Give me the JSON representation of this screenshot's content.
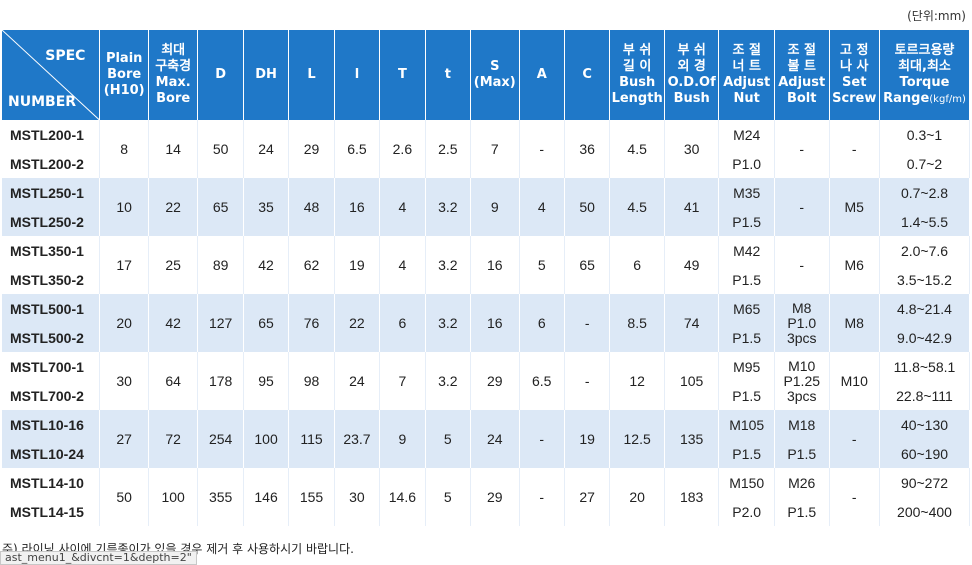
{
  "unit_label": "(단위:mm)",
  "headers": {
    "spec": "SPEC",
    "number": "NUMBER",
    "plain_bore": [
      "Plain",
      "Bore",
      "(H10)"
    ],
    "max_bore": [
      "최대",
      "구축경",
      "Max.",
      "Bore"
    ],
    "d": "D",
    "dh": "DH",
    "l": "L",
    "l2": "l",
    "t_upper": "T",
    "t_lower": "t",
    "s": [
      "S",
      "(Max)"
    ],
    "a": "A",
    "c": "C",
    "bush_length": [
      "부 쉬",
      "길 이",
      "Bush",
      "Length"
    ],
    "bush_od": [
      "부 쉬",
      "외 경",
      "O.D.Of",
      "Bush"
    ],
    "adjust_nut": [
      "조 절",
      "너 트",
      "Adjust",
      "Nut"
    ],
    "adjust_bolt": [
      "조 절",
      "볼 트",
      "Adjust",
      "Bolt"
    ],
    "set_screw": [
      "고 정",
      "나 사",
      "Set",
      "Screw"
    ],
    "torque": [
      "토르크용량",
      "최대,최소",
      "Torque",
      "Range",
      "(kgf/m)"
    ]
  },
  "groups": [
    {
      "models": [
        "MSTL200-1",
        "MSTL200-2"
      ],
      "plain_bore": "8",
      "max_bore": "14",
      "d": "50",
      "dh": "24",
      "l": "29",
      "l2": "6.5",
      "t_upper": "2.6",
      "t_lower": "2.5",
      "s": "7",
      "a": "-",
      "c": "36",
      "bush_length": "4.5",
      "bush_od": "30",
      "adjust_nut": [
        "M24",
        "P1.0"
      ],
      "adjust_bolt": "-",
      "set_screw": "-",
      "torque": [
        "0.3~1",
        "0.7~2"
      ]
    },
    {
      "models": [
        "MSTL250-1",
        "MSTL250-2"
      ],
      "plain_bore": "10",
      "max_bore": "22",
      "d": "65",
      "dh": "35",
      "l": "48",
      "l2": "16",
      "t_upper": "4",
      "t_lower": "3.2",
      "s": "9",
      "a": "4",
      "c": "50",
      "bush_length": "4.5",
      "bush_od": "41",
      "adjust_nut": [
        "M35",
        "P1.5"
      ],
      "adjust_bolt": "-",
      "set_screw": "M5",
      "torque": [
        "0.7~2.8",
        "1.4~5.5"
      ]
    },
    {
      "models": [
        "MSTL350-1",
        "MSTL350-2"
      ],
      "plain_bore": "17",
      "max_bore": "25",
      "d": "89",
      "dh": "42",
      "l": "62",
      "l2": "19",
      "t_upper": "4",
      "t_lower": "3.2",
      "s": "16",
      "a": "5",
      "c": "65",
      "bush_length": "6",
      "bush_od": "49",
      "adjust_nut": [
        "M42",
        "P1.5"
      ],
      "adjust_bolt": "-",
      "set_screw": "M6",
      "torque": [
        "2.0~7.6",
        "3.5~15.2"
      ]
    },
    {
      "models": [
        "MSTL500-1",
        "MSTL500-2"
      ],
      "plain_bore": "20",
      "max_bore": "42",
      "d": "127",
      "dh": "65",
      "l": "76",
      "l2": "22",
      "t_upper": "6",
      "t_lower": "3.2",
      "s": "16",
      "a": "6",
      "c": "-",
      "bush_length": "8.5",
      "bush_od": "74",
      "adjust_nut": [
        "M65",
        "P1.5"
      ],
      "adjust_bolt": [
        "M8",
        "P1.0",
        "3pcs"
      ],
      "set_screw": "M8",
      "torque": [
        "4.8~21.4",
        "9.0~42.9"
      ]
    },
    {
      "models": [
        "MSTL700-1",
        "MSTL700-2"
      ],
      "plain_bore": "30",
      "max_bore": "64",
      "d": "178",
      "dh": "95",
      "l": "98",
      "l2": "24",
      "t_upper": "7",
      "t_lower": "3.2",
      "s": "29",
      "a": "6.5",
      "c": "-",
      "bush_length": "12",
      "bush_od": "105",
      "adjust_nut": [
        "M95",
        "P1.5"
      ],
      "adjust_bolt": [
        "M10",
        "P1.25",
        "3pcs"
      ],
      "set_screw": "M10",
      "torque": [
        "11.8~58.1",
        "22.8~111"
      ]
    },
    {
      "models": [
        "MSTL10-16",
        "MSTL10-24"
      ],
      "plain_bore": "27",
      "max_bore": "72",
      "d": "254",
      "dh": "100",
      "l": "115",
      "l2": "23.7",
      "t_upper": "9",
      "t_lower": "5",
      "s": "24",
      "a": "-",
      "c": "19",
      "bush_length": "12.5",
      "bush_od": "135",
      "adjust_nut": [
        "M105",
        "P1.5"
      ],
      "adjust_bolt": [
        "M18",
        "P1.5"
      ],
      "set_screw": "-",
      "torque": [
        "40~130",
        "60~190"
      ]
    },
    {
      "models": [
        "MSTL14-10",
        "MSTL14-15"
      ],
      "plain_bore": "50",
      "max_bore": "100",
      "d": "355",
      "dh": "146",
      "l": "155",
      "l2": "30",
      "t_upper": "14.6",
      "t_lower": "5",
      "s": "29",
      "a": "-",
      "c": "27",
      "bush_length": "20",
      "bush_od": "183",
      "adjust_nut": [
        "M150",
        "P2.0"
      ],
      "adjust_bolt": [
        "M26",
        "P1.5"
      ],
      "set_screw": "-",
      "torque": [
        "90~272",
        "200~400"
      ]
    }
  ],
  "footnote": "주) 라이닝 사이에 기름종이가 있을 경우 제거 후 사용하시기 바랍니다.",
  "status_text": "ast_menu1_&divcnt=1&depth=2\""
}
